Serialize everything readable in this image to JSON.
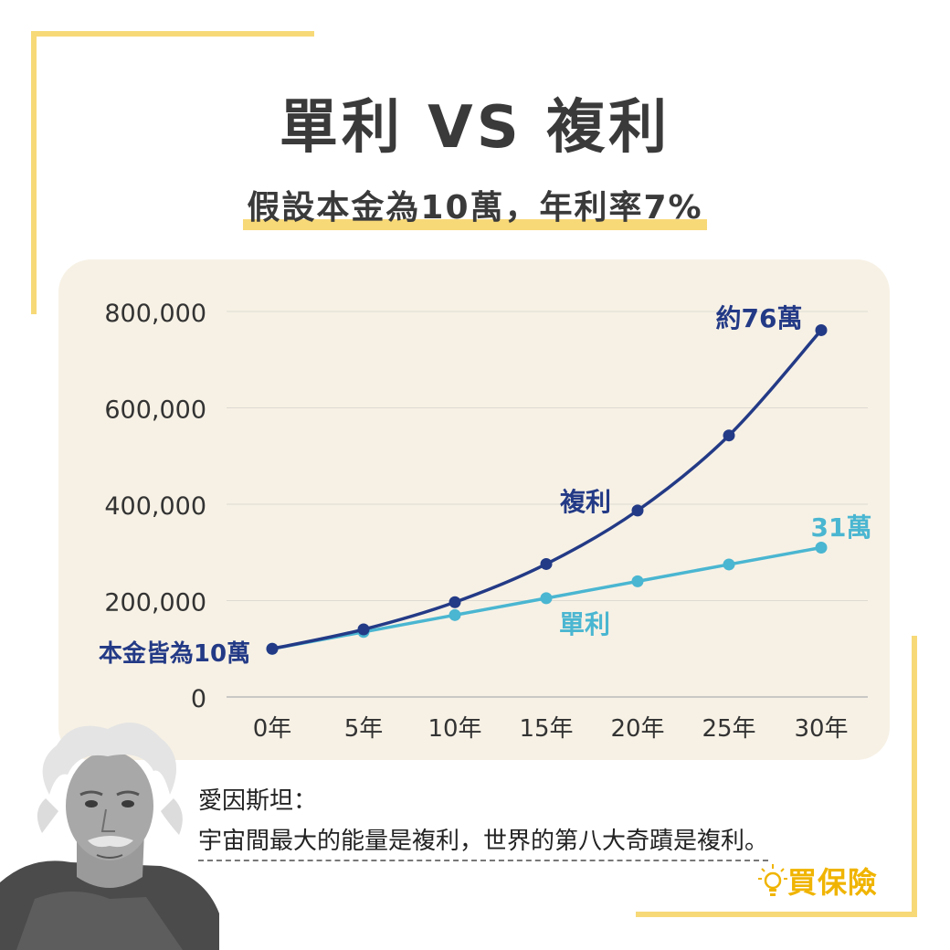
{
  "header": {
    "title": "單利 VS 複利",
    "subtitle": "假設本金為10萬，年利率7%"
  },
  "quote": {
    "name": "愛因斯坦：",
    "text": "宇宙間最大的能量是複利，世界的第八大奇蹟是複利。"
  },
  "logo": {
    "text": "買保險",
    "icon": "lightbulb-icon"
  },
  "colors": {
    "compound": "#233a86",
    "simple": "#4ab6d1",
    "accent": "#f7d978",
    "panel": "#f7f1e5",
    "logo": "#f0b400"
  },
  "chart_data": {
    "type": "line",
    "categories": [
      "0年",
      "5年",
      "10年",
      "15年",
      "20年",
      "25年",
      "30年"
    ],
    "ylim": [
      0,
      800000
    ],
    "yticks": [
      0,
      200000,
      400000,
      600000,
      800000
    ],
    "ytick_labels": [
      "0",
      "200,000",
      "400,000",
      "600,000",
      "800,000"
    ],
    "grid": true,
    "series": [
      {
        "name": "複利",
        "values": [
          100000,
          140255,
          196715,
          275903,
          386968,
          542743,
          761226
        ]
      },
      {
        "name": "單利",
        "values": [
          100000,
          135000,
          170000,
          205000,
          240000,
          275000,
          310000
        ]
      }
    ],
    "annotations": {
      "start": "本金皆為10萬",
      "compound_end": "約76萬",
      "simple_end": "31萬"
    }
  }
}
